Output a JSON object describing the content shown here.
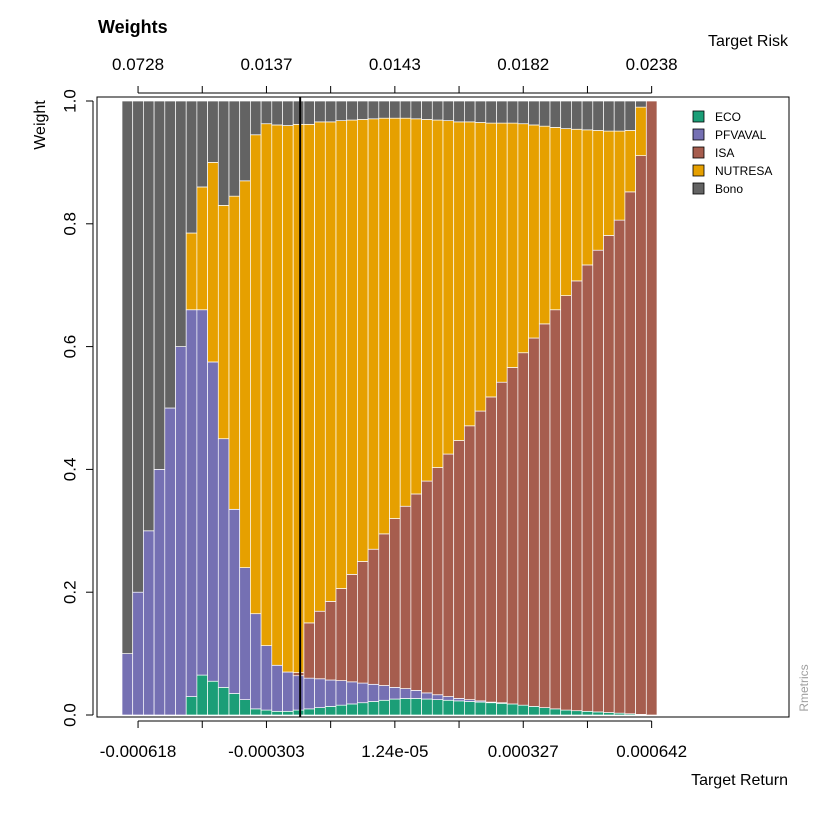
{
  "colors": {
    "ECO": "#1b9e77",
    "PFVAVAL": "#7570b3",
    "ISA": "#a65d4e",
    "NUTRESA": "#e6a000",
    "Bono": "#636363",
    "frontier_line": "#000000",
    "bar_border": "#ffffff"
  },
  "chart_data": {
    "type": "bar",
    "stacked": true,
    "title": "Weights",
    "ylabel": "Weight",
    "xlabel_bottom": "Target Return",
    "xlabel_top": "Target Risk",
    "watermark": "Rmetrics",
    "ylim": [
      0,
      1
    ],
    "grid": false,
    "legend_position": "top-right",
    "n_portfolios": 50,
    "bottom_axis_ticks": [
      {
        "portfolio": 2,
        "label": "-0.000618"
      },
      {
        "portfolio": 14,
        "label": "-0.000303"
      },
      {
        "portfolio": 26,
        "label": "1.24e-05"
      },
      {
        "portfolio": 38,
        "label": "0.000327"
      },
      {
        "portfolio": 50,
        "label": "0.000642"
      }
    ],
    "top_axis_ticks": [
      {
        "portfolio": 2,
        "label": "0.0728"
      },
      {
        "portfolio": 14,
        "label": "0.0137"
      },
      {
        "portfolio": 26,
        "label": "0.0143"
      },
      {
        "portfolio": 38,
        "label": "0.0182"
      },
      {
        "portfolio": 50,
        "label": "0.0238"
      }
    ],
    "minimum_variance_portfolio": 17,
    "y_ticks": [
      "0.0",
      "0.2",
      "0.4",
      "0.6",
      "0.8",
      "1.0"
    ],
    "series": [
      {
        "name": "ECO",
        "values": [
          0,
          0,
          0,
          0,
          0,
          0,
          0.03,
          0.065,
          0.055,
          0.045,
          0.035,
          0.025,
          0.01,
          0.008,
          0.006,
          0.006,
          0.008,
          0.01,
          0.012,
          0.014,
          0.016,
          0.018,
          0.02,
          0.022,
          0.024,
          0.026,
          0.027,
          0.027,
          0.026,
          0.025,
          0.024,
          0.023,
          0.022,
          0.021,
          0.02,
          0.019,
          0.018,
          0.016,
          0.014,
          0.012,
          0.01,
          0.008,
          0.007,
          0.006,
          0.005,
          0.004,
          0.003,
          0.002,
          0.001,
          0
        ]
      },
      {
        "name": "PFVAVAL",
        "values": [
          0.1,
          0.2,
          0.3,
          0.4,
          0.5,
          0.6,
          0.63,
          0.595,
          0.52,
          0.405,
          0.3,
          0.215,
          0.155,
          0.105,
          0.075,
          0.064,
          0.056,
          0.05,
          0.047,
          0.043,
          0.04,
          0.036,
          0.032,
          0.028,
          0.024,
          0.019,
          0.016,
          0.013,
          0.01,
          0.008,
          0.006,
          0.004,
          0.003,
          0.002,
          0.001,
          0.001,
          0,
          0,
          0,
          0,
          0,
          0,
          0,
          0,
          0,
          0,
          0,
          0,
          0,
          0
        ]
      },
      {
        "name": "ISA",
        "values": [
          0,
          0,
          0,
          0,
          0,
          0,
          0,
          0,
          0,
          0,
          0,
          0,
          0,
          0,
          0,
          0,
          0.005,
          0.09,
          0.11,
          0.128,
          0.15,
          0.175,
          0.198,
          0.22,
          0.247,
          0.275,
          0.297,
          0.32,
          0.345,
          0.37,
          0.395,
          0.42,
          0.446,
          0.472,
          0.497,
          0.522,
          0.548,
          0.574,
          0.6,
          0.625,
          0.65,
          0.675,
          0.7,
          0.727,
          0.752,
          0.777,
          0.803,
          0.85,
          0.91,
          1.0
        ]
      },
      {
        "name": "NUTRESA",
        "values": [
          0,
          0,
          0,
          0,
          0,
          0,
          0.125,
          0.2,
          0.325,
          0.38,
          0.51,
          0.63,
          0.78,
          0.85,
          0.88,
          0.89,
          0.893,
          0.812,
          0.797,
          0.781,
          0.762,
          0.74,
          0.72,
          0.701,
          0.677,
          0.652,
          0.632,
          0.611,
          0.589,
          0.566,
          0.543,
          0.519,
          0.495,
          0.47,
          0.446,
          0.422,
          0.398,
          0.373,
          0.347,
          0.322,
          0.297,
          0.272,
          0.247,
          0.22,
          0.195,
          0.17,
          0.145,
          0.1,
          0.079,
          0
        ]
      },
      {
        "name": "Bono",
        "values": [
          0.9,
          0.8,
          0.7,
          0.6,
          0.5,
          0.4,
          0.215,
          0.14,
          0.1,
          0.17,
          0.155,
          0.13,
          0.055,
          0.037,
          0.039,
          0.04,
          0.038,
          0.038,
          0.034,
          0.034,
          0.032,
          0.031,
          0.03,
          0.029,
          0.028,
          0.028,
          0.028,
          0.029,
          0.03,
          0.031,
          0.032,
          0.034,
          0.034,
          0.035,
          0.036,
          0.036,
          0.036,
          0.037,
          0.039,
          0.041,
          0.043,
          0.045,
          0.046,
          0.047,
          0.048,
          0.049,
          0.049,
          0.048,
          0.01,
          0
        ]
      }
    ]
  }
}
